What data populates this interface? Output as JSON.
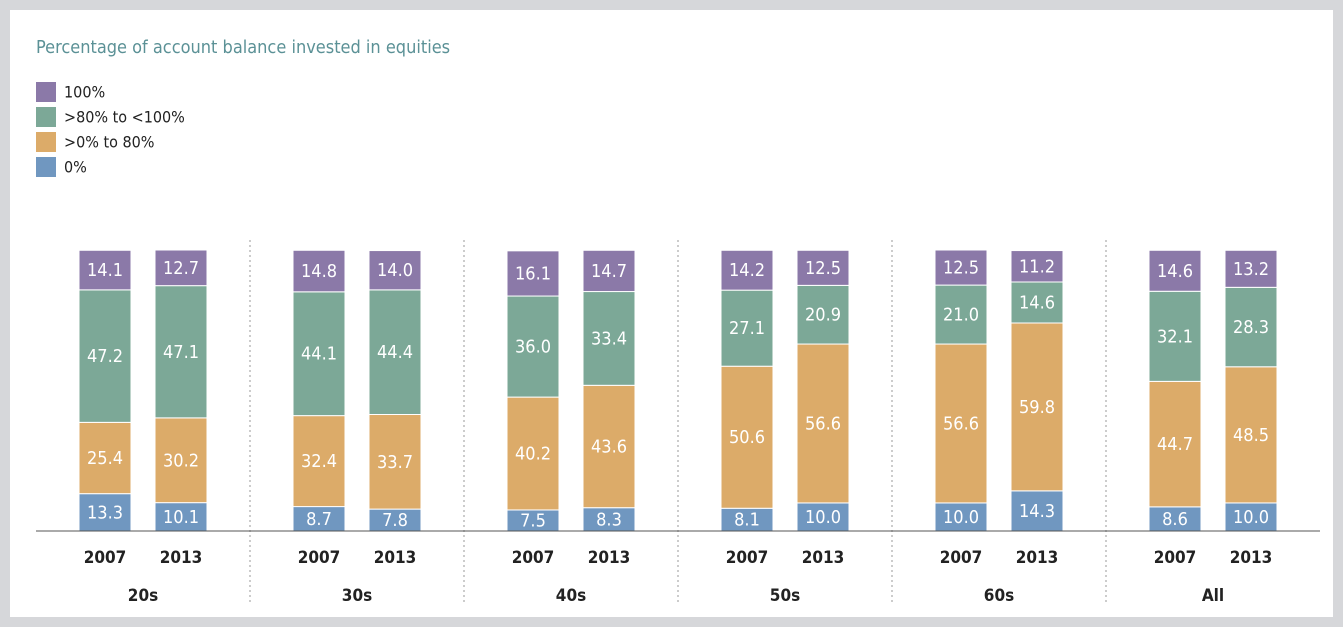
{
  "chart_data": {
    "type": "stacked-bar",
    "title": "Percentage of account balance invested in equities",
    "groups": [
      "20s",
      "30s",
      "40s",
      "50s",
      "60s",
      "All"
    ],
    "categories": [
      "2007",
      "2013",
      "2007",
      "2013",
      "2007",
      "2013",
      "2007",
      "2013",
      "2007",
      "2013",
      "2007",
      "2013"
    ],
    "series": [
      {
        "name": "0%",
        "color": "#7097c0",
        "values": [
          13.3,
          10.1,
          8.7,
          7.8,
          7.5,
          8.3,
          8.1,
          10.0,
          10.0,
          14.3,
          8.6,
          10.0
        ],
        "value_labels": [
          "13.3",
          "10.1",
          "8.7",
          "7.8",
          "7.5",
          "8.3",
          "8.1",
          "10.0",
          "10.0",
          "14.3",
          "8.6",
          "10.0"
        ]
      },
      {
        "name": ">0% to 80%",
        "color": "#dcab69",
        "values": [
          25.4,
          30.2,
          32.4,
          33.7,
          40.2,
          43.6,
          50.6,
          56.6,
          56.6,
          59.8,
          44.7,
          48.5
        ],
        "value_labels": [
          "25.4",
          "30.2",
          "32.4",
          "33.7",
          "40.2",
          "43.6",
          "50.6",
          "56.6",
          "56.6",
          "59.8",
          "44.7",
          "48.5"
        ]
      },
      {
        "name": ">80% to <100%",
        "color": "#7ca897",
        "values": [
          47.2,
          47.1,
          44.1,
          44.4,
          36.0,
          33.4,
          27.1,
          20.9,
          21.0,
          14.6,
          32.1,
          28.3
        ],
        "value_labels": [
          "47.2",
          "47.1",
          "44.1",
          "44.4",
          "36.0",
          "33.4",
          "27.1",
          "20.9",
          "21.0",
          "14.6",
          "32.1",
          "28.3"
        ]
      },
      {
        "name": "100%",
        "color": "#8b79a8",
        "values": [
          14.1,
          12.7,
          14.8,
          14.0,
          16.1,
          14.7,
          14.2,
          12.5,
          12.5,
          11.2,
          14.6,
          13.2
        ],
        "value_labels": [
          "14.1",
          "12.7",
          "14.8",
          "14.0",
          "16.1",
          "14.7",
          "14.2",
          "12.5",
          "12.5",
          "11.2",
          "14.6",
          "13.2"
        ]
      }
    ]
  }
}
